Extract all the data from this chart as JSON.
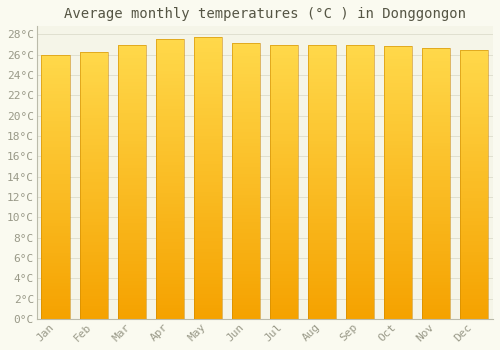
{
  "title": "Average monthly temperatures (°C ) in Donggongon",
  "months": [
    "Jan",
    "Feb",
    "Mar",
    "Apr",
    "May",
    "Jun",
    "Jul",
    "Aug",
    "Sep",
    "Oct",
    "Nov",
    "Dec"
  ],
  "values": [
    26.0,
    26.3,
    27.0,
    27.5,
    27.7,
    27.2,
    27.0,
    27.0,
    27.0,
    26.9,
    26.7,
    26.5
  ],
  "bar_color_bottom": "#F5A200",
  "bar_color_top": "#FFD84A",
  "bar_edge_color": "#CC8800",
  "background_color": "#FAFAF0",
  "grid_color": "#E0E0D0",
  "plot_area_color": "#F5F5E8",
  "ytick_min": 0,
  "ytick_max": 28,
  "ytick_step": 2,
  "title_fontsize": 10,
  "tick_fontsize": 8,
  "tick_color": "#999988",
  "font_family": "monospace"
}
